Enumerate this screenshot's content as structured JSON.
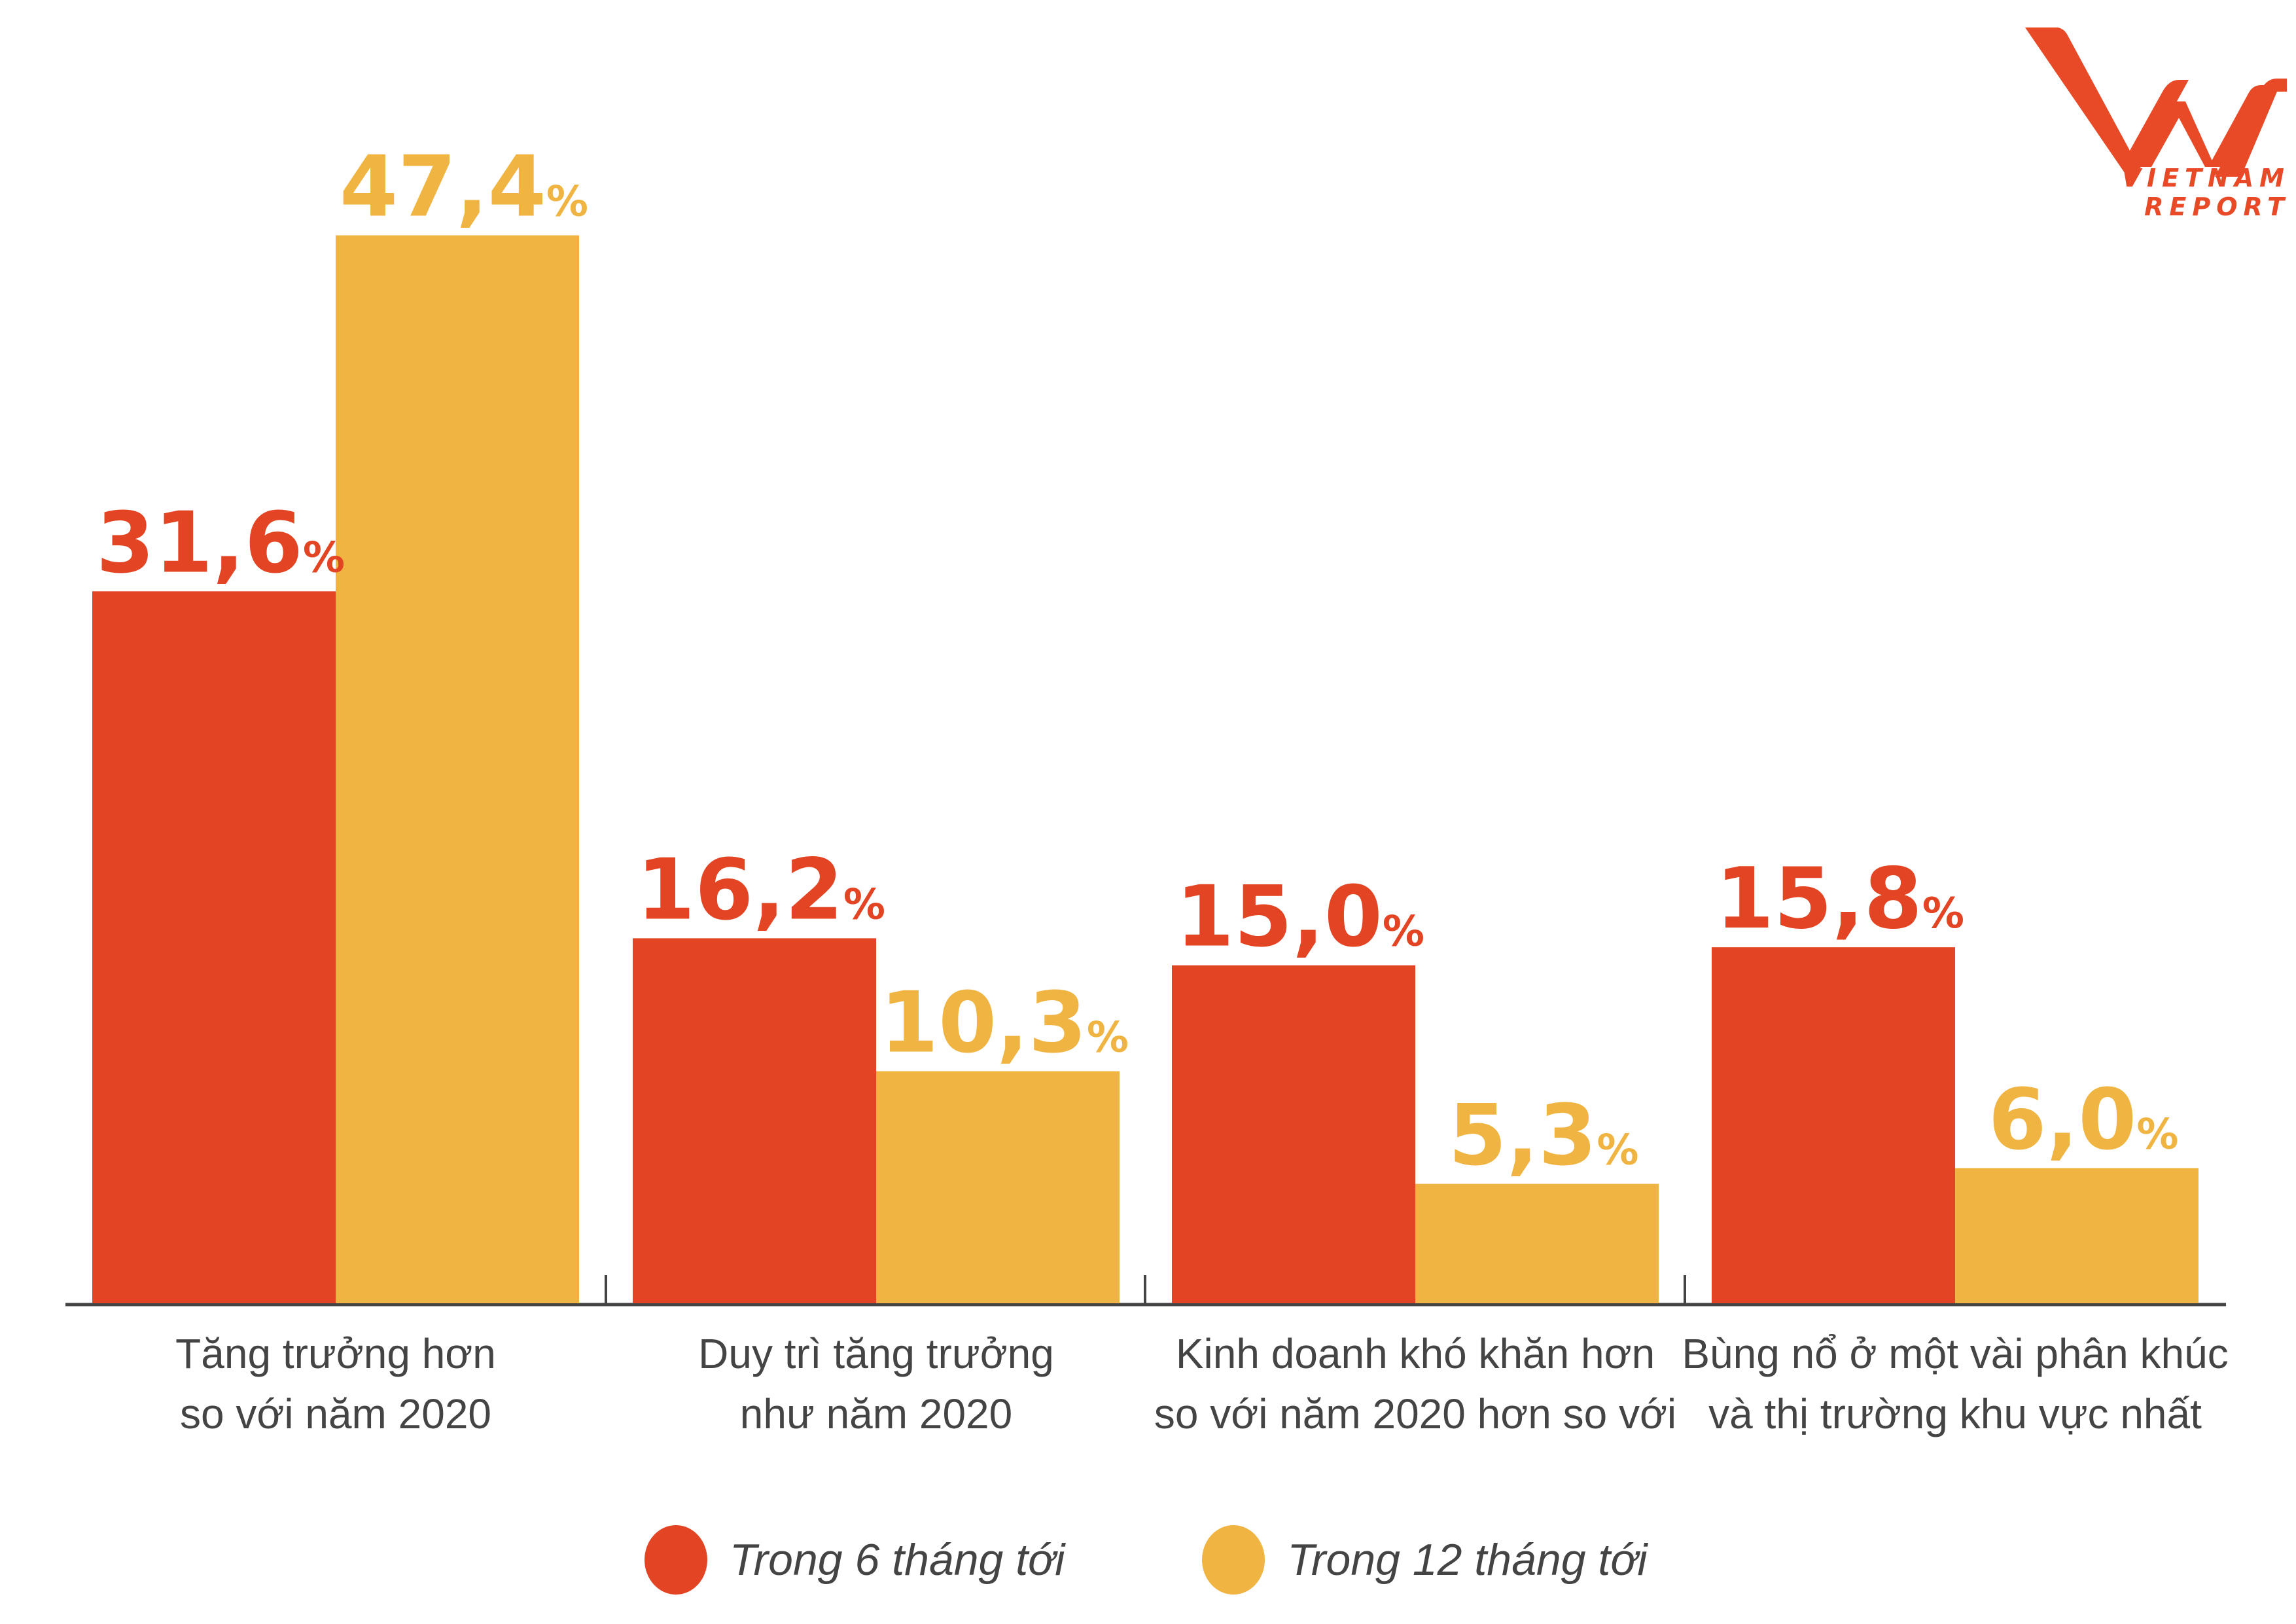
{
  "brand": {
    "logo_mark": "VNR",
    "logo_text": "VIETNAM REPORT",
    "color": "#E84A28"
  },
  "chart_data": {
    "type": "bar",
    "title": "",
    "xlabel": "",
    "ylabel": "",
    "ylim": [
      0,
      50
    ],
    "grid": false,
    "categories": [
      [
        "Tăng trưởng hơn",
        "so với năm 2020"
      ],
      [
        "Duy trì tăng trưởng",
        "như năm 2020"
      ],
      [
        "Kinh doanh khó khăn hơn",
        "so với năm 2020 hơn so với"
      ],
      [
        "Bùng nổ ở một vài phân khúc",
        "và thị trường khu vực nhất"
      ]
    ],
    "series": [
      {
        "name": "Trong 6 tháng tới",
        "color": "#E34423",
        "values": [
          31.6,
          16.2,
          15.0,
          15.8
        ],
        "labels": [
          "31,6",
          "16,2",
          "15,0",
          "15,8"
        ]
      },
      {
        "name": "Trong 12 tháng tới",
        "color": "#F0B442",
        "values": [
          47.4,
          10.3,
          5.3,
          6.0
        ],
        "labels": [
          "47,4",
          "10,3",
          "5,3",
          "6,0"
        ]
      }
    ],
    "value_suffix": "%",
    "legend_position": "bottom-center"
  }
}
